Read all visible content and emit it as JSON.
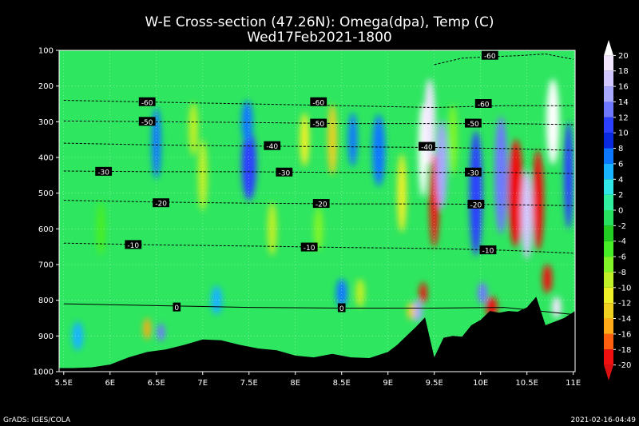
{
  "chart_data": {
    "type": "heatmap",
    "title": "W-E Cross-section (47.26N): Omega(dpa), Temp (C)",
    "subtitle": "Wed17Feb2021-1800",
    "x_ticks": [
      "5.5E",
      "6E",
      "6.5E",
      "7E",
      "7.5E",
      "8E",
      "8.5E",
      "9E",
      "9.5E",
      "10E",
      "10.5E",
      "11E"
    ],
    "x_values": [
      5.5,
      6,
      6.5,
      7,
      7.5,
      8,
      8.5,
      9,
      9.5,
      10,
      10.5,
      11
    ],
    "xlim": [
      5.45,
      11.02
    ],
    "y_ticks": [
      "100",
      "200",
      "300",
      "400",
      "500",
      "600",
      "700",
      "800",
      "900",
      "1000"
    ],
    "y_values": [
      100,
      200,
      300,
      400,
      500,
      600,
      700,
      800,
      900,
      1000
    ],
    "ylim": [
      100,
      1000
    ],
    "grid": true,
    "colorbar": {
      "labels": [
        "20",
        "18",
        "16",
        "14",
        "12",
        "10",
        "8",
        "6",
        "4",
        "2",
        "0",
        "-2",
        "-4",
        "-6",
        "-8",
        "-10",
        "-12",
        "-14",
        "-16",
        "-18",
        "-20"
      ],
      "colors": [
        "#ffffff",
        "#f2e6ff",
        "#d2c8ff",
        "#a8a8ff",
        "#6e78ff",
        "#2c40ff",
        "#0a2ae0",
        "#0c78ff",
        "#18b4ff",
        "#30e6e6",
        "#30f0a0",
        "#28e060",
        "#22cc22",
        "#46ee28",
        "#82f528",
        "#c0f028",
        "#f0f028",
        "#f0d020",
        "#ffaa18",
        "#ff6010",
        "#f01010",
        "#dc1010"
      ]
    },
    "isotherms": [
      {
        "value": "-60",
        "p": [
          240,
          245,
          250,
          255,
          260,
          255,
          255
        ]
      },
      {
        "value": "-50",
        "p": [
          298,
          300,
          302,
          305,
          305,
          305,
          308
        ]
      },
      {
        "value": "-40",
        "p": [
          360,
          365,
          368,
          370,
          372,
          375,
          380
        ]
      },
      {
        "value": "-30",
        "p": [
          438,
          440,
          440,
          442,
          442,
          442,
          445
        ]
      },
      {
        "value": "-20",
        "p": [
          520,
          525,
          528,
          530,
          530,
          532,
          535
        ]
      },
      {
        "value": "-10",
        "p": [
          640,
          645,
          648,
          652,
          655,
          660,
          668
        ]
      },
      {
        "value": "0",
        "p": [
          810,
          815,
          820,
          822,
          822,
          820,
          840
        ]
      }
    ],
    "isotherm_x": [
      5.5,
      6.5,
      7.5,
      8.5,
      9.5,
      10.25,
      11
    ],
    "top_isotherm": {
      "value": "-60",
      "x": [
        9.5,
        9.8,
        10.1,
        10.4,
        10.7,
        11.0
      ],
      "p": [
        140,
        122,
        118,
        115,
        110,
        125
      ]
    },
    "contour_labels": [
      {
        "text": "-60",
        "x": 6.4,
        "p": 245
      },
      {
        "text": "-60",
        "x": 8.25,
        "p": 245
      },
      {
        "text": "-60",
        "x": 10.03,
        "p": 250
      },
      {
        "text": "-60",
        "x": 10.1,
        "p": 115
      },
      {
        "text": "-50",
        "x": 6.4,
        "p": 300
      },
      {
        "text": "-50",
        "x": 8.25,
        "p": 305
      },
      {
        "text": "-50",
        "x": 9.92,
        "p": 305
      },
      {
        "text": "-40",
        "x": 7.75,
        "p": 368
      },
      {
        "text": "-40",
        "x": 9.42,
        "p": 370
      },
      {
        "text": "-30",
        "x": 5.93,
        "p": 440
      },
      {
        "text": "-30",
        "x": 7.88,
        "p": 442
      },
      {
        "text": "-30",
        "x": 9.92,
        "p": 442
      },
      {
        "text": "-20",
        "x": 6.55,
        "p": 528
      },
      {
        "text": "-20",
        "x": 8.28,
        "p": 530
      },
      {
        "text": "-20",
        "x": 9.95,
        "p": 532
      },
      {
        "text": "-10",
        "x": 6.25,
        "p": 645
      },
      {
        "text": "-10",
        "x": 8.15,
        "p": 652
      },
      {
        "text": "-10",
        "x": 10.08,
        "p": 660
      },
      {
        "text": "0",
        "x": 6.72,
        "p": 820
      },
      {
        "text": "0",
        "x": 8.5,
        "p": 822
      }
    ],
    "terrain": {
      "x": [
        5.45,
        5.6,
        5.8,
        6.0,
        6.2,
        6.4,
        6.6,
        6.8,
        7.0,
        7.2,
        7.4,
        7.6,
        7.8,
        8.0,
        8.2,
        8.4,
        8.6,
        8.8,
        9.0,
        9.1,
        9.2,
        9.3,
        9.4,
        9.5,
        9.6,
        9.7,
        9.8,
        9.9,
        10.0,
        10.1,
        10.2,
        10.3,
        10.4,
        10.5,
        10.6,
        10.7,
        10.8,
        10.9,
        11.02
      ],
      "p": [
        990,
        990,
        988,
        980,
        960,
        945,
        938,
        925,
        910,
        912,
        925,
        935,
        940,
        955,
        960,
        950,
        960,
        962,
        945,
        925,
        900,
        875,
        848,
        960,
        905,
        900,
        902,
        870,
        855,
        830,
        835,
        830,
        832,
        820,
        790,
        870,
        860,
        850,
        830
      ]
    },
    "omega_cores": [
      {
        "x": 9.38,
        "p": 380,
        "w": 0.05,
        "h": 260,
        "v": 20
      },
      {
        "x": 9.45,
        "p": 300,
        "w": 0.06,
        "h": 240,
        "v": 18
      },
      {
        "x": 9.5,
        "p": 520,
        "w": 0.05,
        "h": 260,
        "v": -20
      },
      {
        "x": 9.58,
        "p": 420,
        "w": 0.06,
        "h": 250,
        "v": 14
      },
      {
        "x": 9.38,
        "p": 780,
        "w": 0.04,
        "h": 60,
        "v": -20
      },
      {
        "x": 9.32,
        "p": 830,
        "w": 0.05,
        "h": 60,
        "v": 14
      },
      {
        "x": 9.95,
        "p": 500,
        "w": 0.07,
        "h": 350,
        "v": 10
      },
      {
        "x": 10.02,
        "p": 780,
        "w": 0.05,
        "h": 60,
        "v": 12
      },
      {
        "x": 10.12,
        "p": 820,
        "w": 0.06,
        "h": 60,
        "v": -20
      },
      {
        "x": 10.22,
        "p": 450,
        "w": 0.07,
        "h": 330,
        "v": 12
      },
      {
        "x": 10.38,
        "p": 500,
        "w": 0.08,
        "h": 300,
        "v": -20
      },
      {
        "x": 10.5,
        "p": 560,
        "w": 0.06,
        "h": 250,
        "v": 16
      },
      {
        "x": 10.62,
        "p": 520,
        "w": 0.06,
        "h": 280,
        "v": -20
      },
      {
        "x": 10.78,
        "p": 300,
        "w": 0.07,
        "h": 240,
        "v": 20
      },
      {
        "x": 10.72,
        "p": 740,
        "w": 0.05,
        "h": 80,
        "v": -20
      },
      {
        "x": 10.82,
        "p": 820,
        "w": 0.05,
        "h": 60,
        "v": 18
      },
      {
        "x": 10.95,
        "p": 450,
        "w": 0.05,
        "h": 300,
        "v": 10
      },
      {
        "x": 7.5,
        "p": 420,
        "w": 0.08,
        "h": 200,
        "v": 10
      },
      {
        "x": 7.48,
        "p": 300,
        "w": 0.06,
        "h": 120,
        "v": 6
      },
      {
        "x": 6.5,
        "p": 360,
        "w": 0.05,
        "h": 200,
        "v": 6
      },
      {
        "x": 6.55,
        "p": 890,
        "w": 0.04,
        "h": 50,
        "v": 12
      },
      {
        "x": 8.9,
        "p": 380,
        "w": 0.07,
        "h": 200,
        "v": 6
      },
      {
        "x": 8.62,
        "p": 350,
        "w": 0.05,
        "h": 150,
        "v": 6
      },
      {
        "x": 8.5,
        "p": 780,
        "w": 0.06,
        "h": 80,
        "v": 6
      },
      {
        "x": 5.65,
        "p": 900,
        "w": 0.06,
        "h": 80,
        "v": 4
      },
      {
        "x": 7.15,
        "p": 800,
        "w": 0.06,
        "h": 80,
        "v": 4
      },
      {
        "x": 8.4,
        "p": 350,
        "w": 0.05,
        "h": 200,
        "v": -14
      },
      {
        "x": 8.1,
        "p": 350,
        "w": 0.05,
        "h": 150,
        "v": -12
      },
      {
        "x": 7.0,
        "p": 450,
        "w": 0.05,
        "h": 200,
        "v": -10
      },
      {
        "x": 6.9,
        "p": 320,
        "w": 0.05,
        "h": 150,
        "v": -10
      },
      {
        "x": 9.15,
        "p": 500,
        "w": 0.05,
        "h": 220,
        "v": -12
      },
      {
        "x": 8.7,
        "p": 780,
        "w": 0.05,
        "h": 80,
        "v": -10
      },
      {
        "x": 7.75,
        "p": 600,
        "w": 0.05,
        "h": 150,
        "v": -10
      },
      {
        "x": 6.4,
        "p": 880,
        "w": 0.04,
        "h": 60,
        "v": -16
      },
      {
        "x": 8.25,
        "p": 600,
        "w": 0.05,
        "h": 120,
        "v": -8
      },
      {
        "x": 9.25,
        "p": 830,
        "w": 0.04,
        "h": 50,
        "v": -14
      },
      {
        "x": 5.9,
        "p": 600,
        "w": 0.05,
        "h": 150,
        "v": -6
      },
      {
        "x": 9.7,
        "p": 350,
        "w": 0.05,
        "h": 200,
        "v": -8
      }
    ]
  },
  "footer": {
    "left": "GrADS: IGES/COLA",
    "right": "2021-02-16-04:49"
  }
}
